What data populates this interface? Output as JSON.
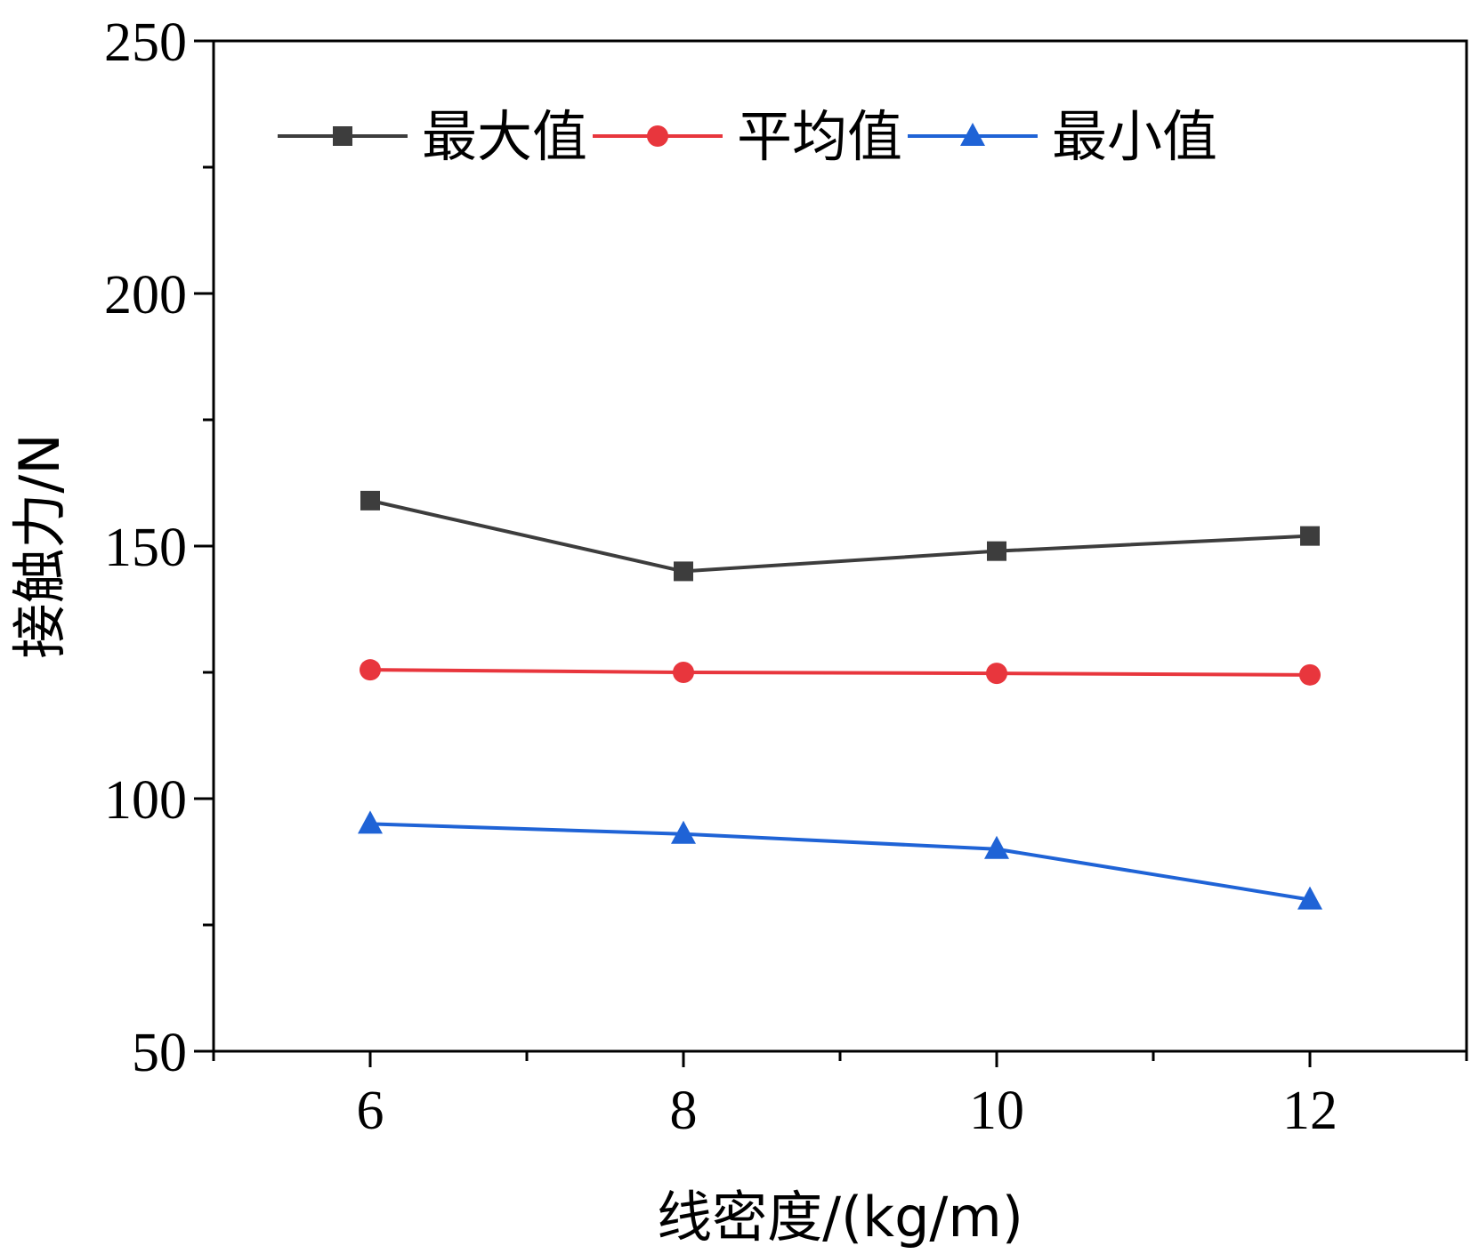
{
  "chart_data": {
    "type": "line",
    "title": "",
    "xlabel": "线密度/(kg/m)",
    "ylabel": "接触力/N",
    "x": [
      6,
      8,
      10,
      12
    ],
    "xlim": [
      5,
      13
    ],
    "ylim": [
      50,
      250
    ],
    "xticks": [
      6,
      8,
      10,
      12
    ],
    "xtick_labels": [
      "6",
      "8",
      "10",
      "12"
    ],
    "yticks": [
      50,
      100,
      150,
      200,
      250
    ],
    "ytick_labels": [
      "50",
      "100",
      "150",
      "200",
      "250"
    ],
    "grid": false,
    "legend_position": "top",
    "series": [
      {
        "name": "最大值",
        "values": [
          159,
          145,
          149,
          152
        ],
        "color": "#3d3d3d",
        "marker": "square"
      },
      {
        "name": "平均值",
        "values": [
          125.5,
          125,
          124.8,
          124.5
        ],
        "color": "#e8363d",
        "marker": "circle"
      },
      {
        "name": "最小值",
        "values": [
          95,
          93,
          90,
          80
        ],
        "color": "#1f63d6",
        "marker": "triangle"
      }
    ]
  }
}
